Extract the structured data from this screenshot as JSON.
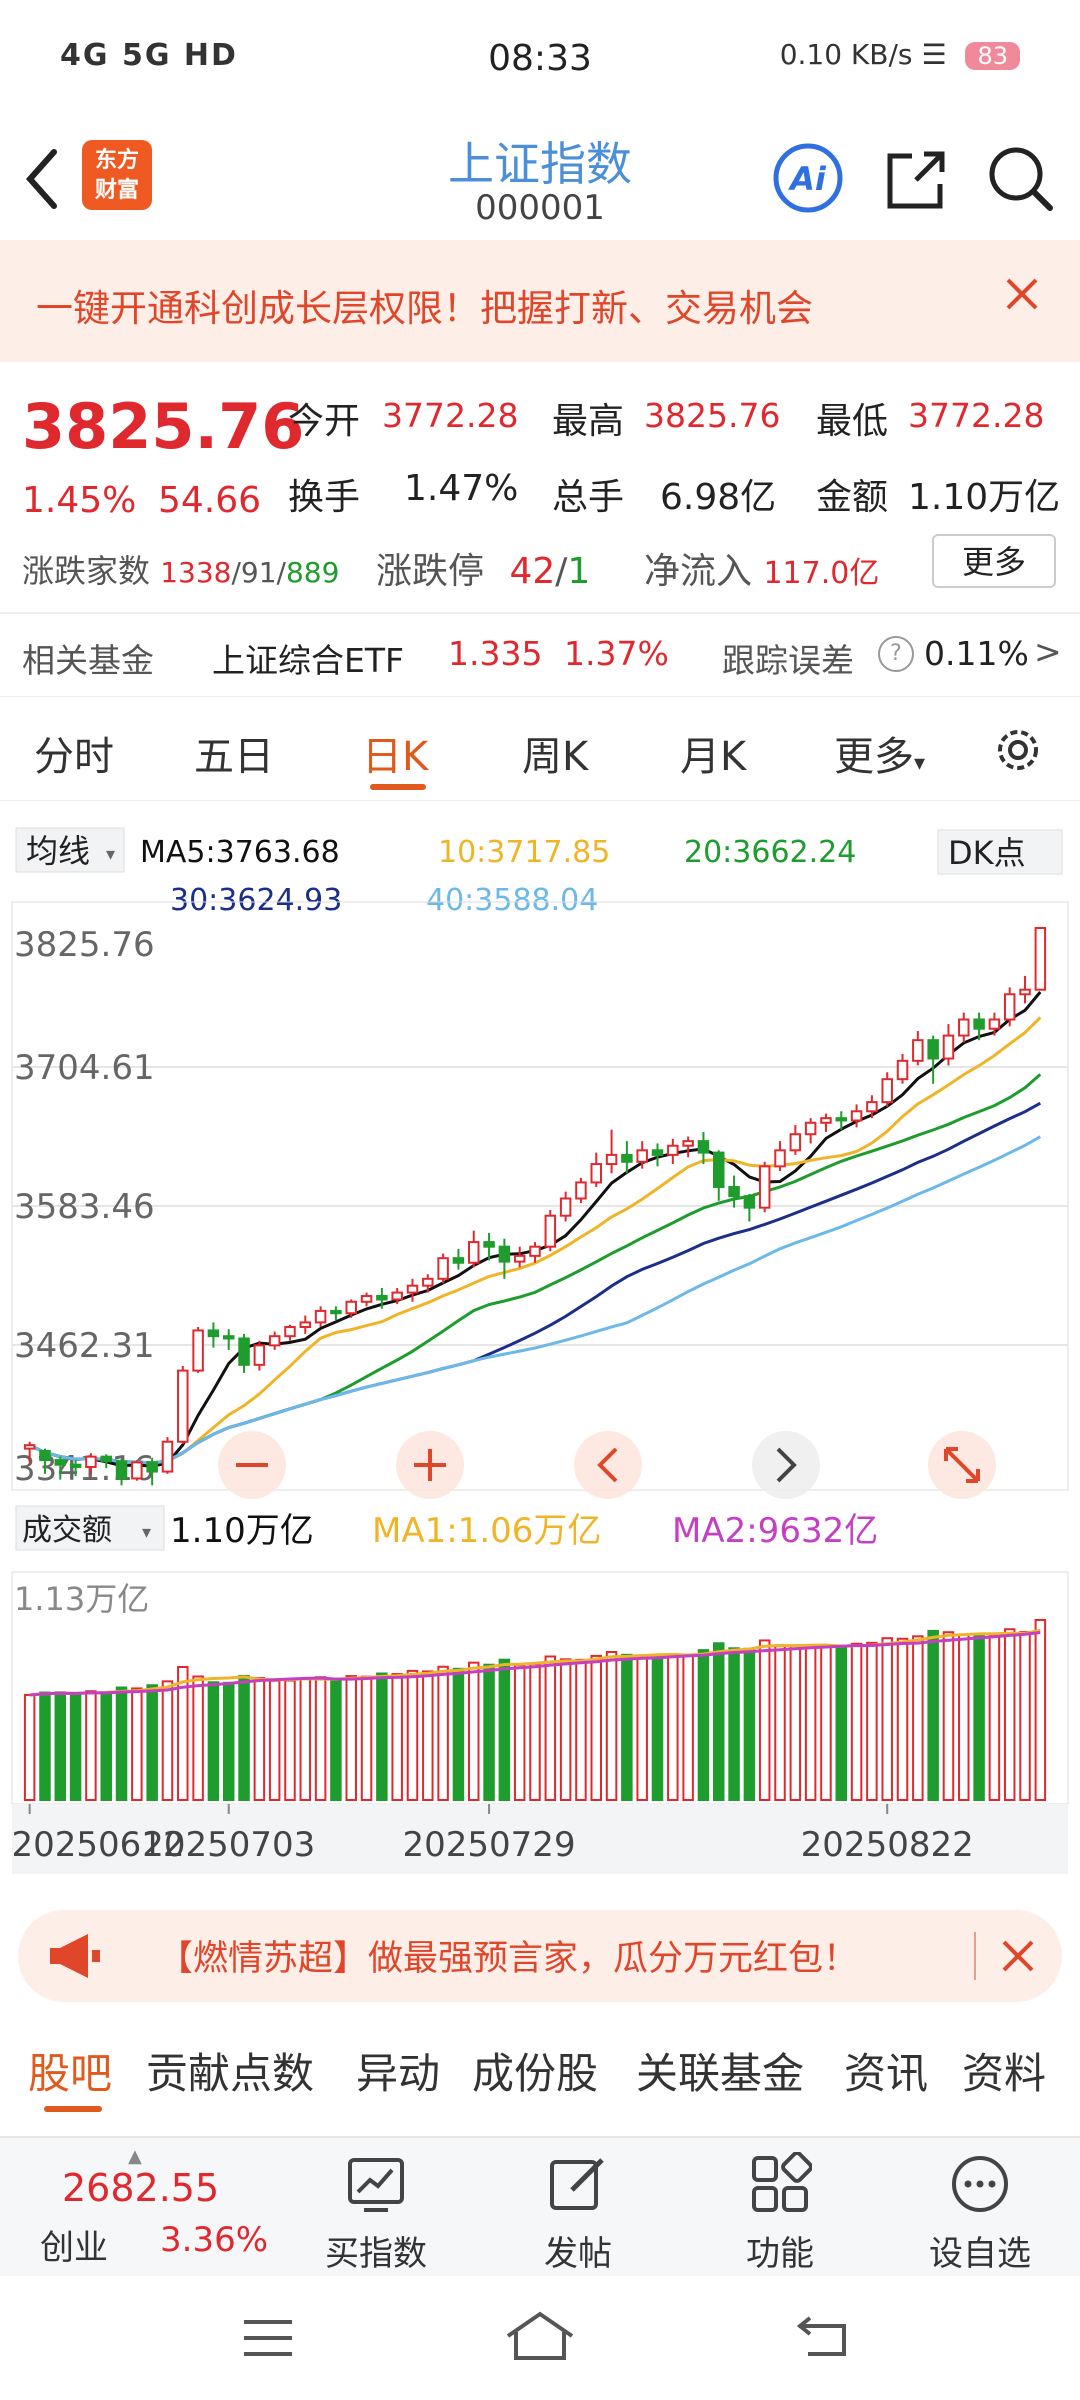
{
  "status_bar": {
    "left": "4G 5G HD",
    "time": "08:33",
    "net_speed": "0.10 KB/s",
    "battery": "83"
  },
  "header": {
    "logo_line1": "东方",
    "logo_line2": "财富",
    "title": "上证指数",
    "code": "000001",
    "ai_label": "Ai"
  },
  "banner": {
    "text": "一键开通科创成长层权限！把握打新、交易机会"
  },
  "quote": {
    "price": "3825.76",
    "change_pct": "1.45%",
    "change": "54.66",
    "open_label": "今开",
    "open": "3772.28",
    "high_label": "最高",
    "high": "3825.76",
    "low_label": "最低",
    "low": "3772.28",
    "turnover_label": "换手",
    "turnover": "1.47%",
    "volume_label": "总手",
    "volume": "6.98亿",
    "amount_label": "金额",
    "amount": "1.10万亿",
    "breadth_label": "涨跌家数",
    "breadth_up": "1338",
    "breadth_flat": "91",
    "breadth_down": "889",
    "limit_label": "涨跌停",
    "limit_up": "42",
    "limit_down": "1",
    "inflow_label": "净流入",
    "inflow": "117.0亿",
    "more": "更多"
  },
  "fund": {
    "label": "相关基金",
    "name": "上证综合ETF",
    "price": "1.335",
    "pct": "1.37%",
    "track_label": "跟踪误差",
    "track": "0.11%"
  },
  "tabs": [
    "分时",
    "五日",
    "日K",
    "周K",
    "月K",
    "更多"
  ],
  "active_tab": 2,
  "ma": {
    "selector": "均线",
    "ma5": "MA5:3763.68",
    "ma10": "10:3717.85",
    "ma20": "20:3662.24",
    "ma30": "30:3624.93",
    "ma40": "40:3588.04",
    "dk": "DK点"
  },
  "price_axis": [
    "3825.76",
    "3704.61",
    "3583.46",
    "3462.31",
    "3341.16"
  ],
  "volume_header": {
    "selector": "成交额",
    "value": "1.10万亿",
    "ma1": "MA1:1.06万亿",
    "ma2": "MA2:9632亿",
    "axis_top": "1.13万亿"
  },
  "x_labels": [
    "20250612",
    "20250703",
    "20250729",
    "20250822"
  ],
  "colors": {
    "up": "#e0292f",
    "down": "#1e9c2d",
    "ma5": "#111111",
    "ma10": "#f0b429",
    "ma20": "#1e9c2d",
    "ma30": "#1b2f8a",
    "ma40": "#6cb8e8",
    "accent": "#e05a1e"
  },
  "chart_data": {
    "type": "candlestick",
    "ylim": [
      3341.16,
      3825.76
    ],
    "candles": [
      [
        3372,
        3375,
        3360,
        3378
      ],
      [
        3370,
        3362,
        3350,
        3372
      ],
      [
        3362,
        3358,
        3345,
        3365
      ],
      [
        3358,
        3356,
        3348,
        3362
      ],
      [
        3356,
        3365,
        3350,
        3368
      ],
      [
        3365,
        3361,
        3355,
        3367
      ],
      [
        3361,
        3346,
        3340,
        3363
      ],
      [
        3346,
        3360,
        3344,
        3362
      ],
      [
        3360,
        3352,
        3340,
        3364
      ],
      [
        3352,
        3378,
        3350,
        3382
      ],
      [
        3378,
        3440,
        3376,
        3444
      ],
      [
        3440,
        3475,
        3438,
        3478
      ],
      [
        3475,
        3470,
        3460,
        3482
      ],
      [
        3470,
        3468,
        3458,
        3476
      ],
      [
        3468,
        3445,
        3438,
        3472
      ],
      [
        3445,
        3462,
        3440,
        3466
      ],
      [
        3462,
        3470,
        3458,
        3474
      ],
      [
        3470,
        3478,
        3466,
        3480
      ],
      [
        3478,
        3482,
        3472,
        3488
      ],
      [
        3482,
        3492,
        3478,
        3496
      ],
      [
        3492,
        3490,
        3484,
        3496
      ],
      [
        3490,
        3500,
        3486,
        3502
      ],
      [
        3500,
        3505,
        3496,
        3508
      ],
      [
        3505,
        3502,
        3494,
        3512
      ],
      [
        3502,
        3508,
        3498,
        3512
      ],
      [
        3508,
        3514,
        3500,
        3520
      ],
      [
        3514,
        3520,
        3508,
        3524
      ],
      [
        3520,
        3538,
        3516,
        3542
      ],
      [
        3538,
        3534,
        3528,
        3546
      ],
      [
        3534,
        3552,
        3530,
        3562
      ],
      [
        3552,
        3548,
        3536,
        3560
      ],
      [
        3548,
        3535,
        3520,
        3555
      ],
      [
        3535,
        3540,
        3530,
        3548
      ],
      [
        3540,
        3548,
        3534,
        3552
      ],
      [
        3548,
        3575,
        3544,
        3580
      ],
      [
        3575,
        3590,
        3570,
        3596
      ],
      [
        3590,
        3604,
        3586,
        3608
      ],
      [
        3604,
        3620,
        3600,
        3630
      ],
      [
        3620,
        3628,
        3612,
        3650
      ],
      [
        3628,
        3622,
        3612,
        3640
      ],
      [
        3622,
        3632,
        3616,
        3640
      ],
      [
        3632,
        3628,
        3618,
        3638
      ],
      [
        3628,
        3636,
        3620,
        3642
      ],
      [
        3636,
        3640,
        3626,
        3644
      ],
      [
        3640,
        3630,
        3620,
        3648
      ],
      [
        3630,
        3600,
        3588,
        3632
      ],
      [
        3600,
        3592,
        3582,
        3610
      ],
      [
        3592,
        3582,
        3570,
        3594
      ],
      [
        3582,
        3618,
        3578,
        3622
      ],
      [
        3618,
        3632,
        3614,
        3640
      ],
      [
        3632,
        3646,
        3628,
        3654
      ],
      [
        3646,
        3656,
        3638,
        3660
      ],
      [
        3656,
        3660,
        3648,
        3664
      ],
      [
        3660,
        3658,
        3650,
        3666
      ],
      [
        3658,
        3666,
        3652,
        3672
      ],
      [
        3666,
        3674,
        3660,
        3680
      ],
      [
        3674,
        3694,
        3670,
        3700
      ],
      [
        3694,
        3710,
        3690,
        3716
      ],
      [
        3710,
        3728,
        3706,
        3736
      ],
      [
        3728,
        3712,
        3690,
        3732
      ],
      [
        3712,
        3732,
        3706,
        3742
      ],
      [
        3732,
        3746,
        3726,
        3752
      ],
      [
        3746,
        3738,
        3728,
        3752
      ],
      [
        3738,
        3746,
        3732,
        3752
      ],
      [
        3746,
        3768,
        3740,
        3774
      ],
      [
        3768,
        3772,
        3760,
        3784
      ],
      [
        3772,
        3825.76,
        3772,
        3825.76
      ]
    ]
  }
}
